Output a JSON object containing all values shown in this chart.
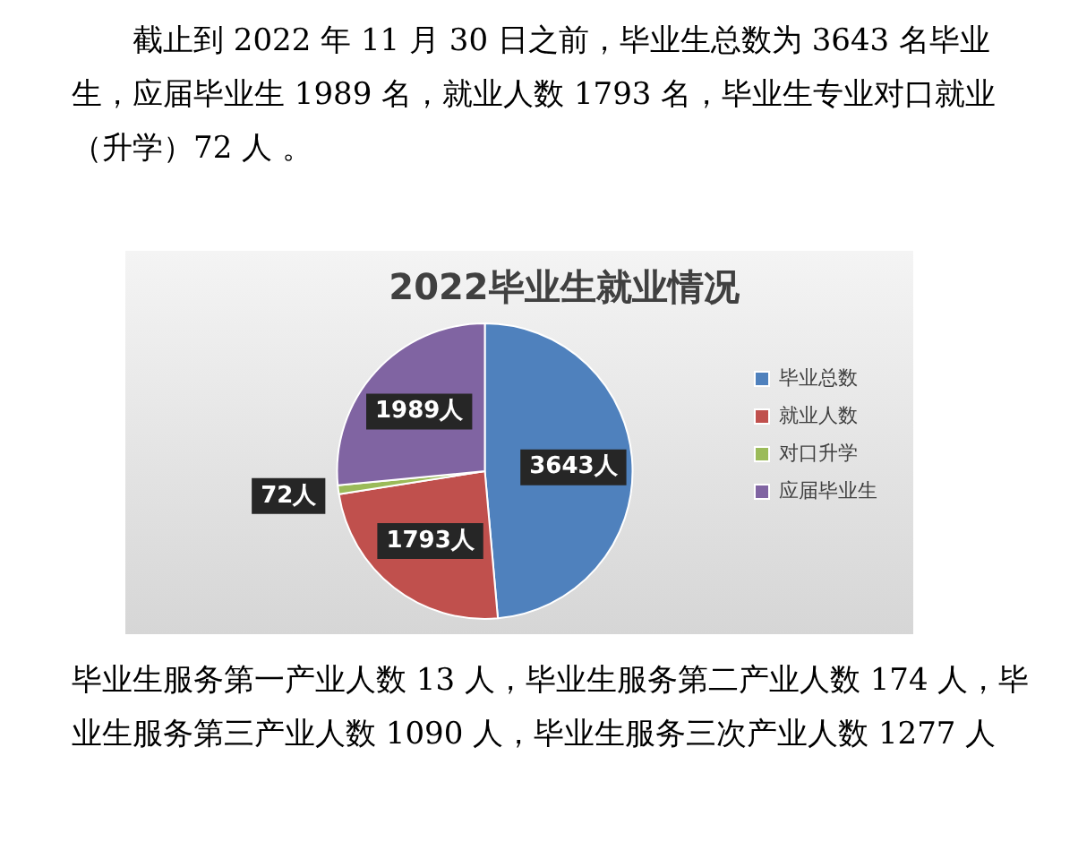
{
  "chart_data": {
    "type": "pie",
    "title": "2022毕业生就业情况",
    "categories": [
      "毕业总数",
      "就业人数",
      "对口升学",
      "应届毕业生"
    ],
    "values": [
      3643,
      1793,
      72,
      1989
    ],
    "colors": [
      "#4f81bd",
      "#c0504d",
      "#9bbb59",
      "#8064a2"
    ],
    "value_labels": [
      "3643人",
      "1793人",
      "72人",
      "1989人"
    ],
    "legend": "right",
    "annotations": [
      "截止到 2022 年 11 月 30 日之前，毕业生总数为 3643 名毕业生，应届毕业生 1989 名，就业人数 1793 名，毕业生专业对口就业（升学）72 人 。",
      "毕业生服务第一产业人数 13 人，毕业生服务第二产业人数 174 人，毕业生服务第三产业人数 1090 人，毕业生服务三次产业人数 1277 人"
    ]
  }
}
